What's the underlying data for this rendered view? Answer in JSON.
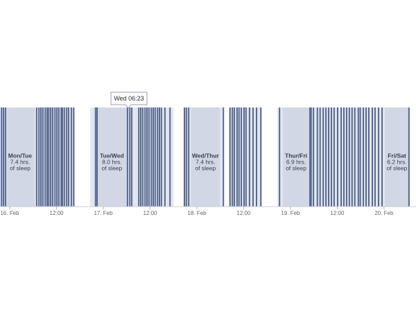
{
  "chart_data": {
    "type": "timeline",
    "xlim": [
      -2.5,
      104.2
    ],
    "xticks": [
      {
        "value": 0,
        "label": "16. Feb"
      },
      {
        "value": 12,
        "label": "12:00"
      },
      {
        "value": 24,
        "label": "17. Feb"
      },
      {
        "value": 36,
        "label": "12:00"
      },
      {
        "value": 48,
        "label": "18. Feb"
      },
      {
        "value": 60,
        "label": "12:00"
      },
      {
        "value": 72,
        "label": "19. Feb"
      },
      {
        "value": 84,
        "label": "12:00"
      },
      {
        "value": 96,
        "label": "20. Feb"
      }
    ],
    "recorded_color": "#e3e6ee",
    "sleep_color": "#d2d7e5",
    "stripe_color": "#56688f",
    "recorded": [
      {
        "start": -2.5,
        "end": 16.7
      },
      {
        "start": 20.6,
        "end": 42.0
      },
      {
        "start": 44.6,
        "end": 54.8
      },
      {
        "start": 56.2,
        "end": 64.7
      },
      {
        "start": 68.6,
        "end": 102.4
      }
    ],
    "sleep": [
      {
        "name": "Mon/Tue",
        "start": -1.1,
        "end": 6.4,
        "hours": 7.4,
        "hours_label": "7.4 hrs.",
        "note": "of sleep"
      },
      {
        "name": "Tue/Wed",
        "start": 22.2,
        "end": 30.2,
        "hours": 8.0,
        "hours_label": "8.0 hrs.",
        "note": "of sleep"
      },
      {
        "name": "Wed/Thur",
        "start": 46.5,
        "end": 53.9,
        "hours": 7.4,
        "hours_label": "7.4 hrs.",
        "note": "of sleep"
      },
      {
        "name": "Thur/Fri",
        "start": 70.0,
        "end": 76.9,
        "hours": 6.9,
        "hours_label": "6.9 hrs.",
        "note": "of sleep"
      },
      {
        "name": "Fri/Sat",
        "start": 96.2,
        "end": 102.4,
        "hours": 6.2,
        "hours_label": "6.2 hrs.",
        "note": "of sleep"
      }
    ],
    "stripes": [
      -2.1,
      -1.6,
      -1.1,
      6.9,
      7.5,
      8.0,
      8.5,
      9.1,
      9.6,
      10.0,
      10.5,
      11.0,
      11.6,
      12.1,
      12.6,
      13.2,
      13.5,
      14.0,
      14.6,
      15.1,
      15.8,
      16.4,
      22.0,
      22.4,
      30.2,
      30.8,
      31.3,
      33.1,
      33.6,
      34.1,
      34.7,
      35.2,
      35.7,
      36.3,
      36.8,
      37.3,
      37.9,
      38.4,
      38.9,
      39.8,
      41.1,
      44.8,
      45.3,
      45.9,
      54.8,
      56.5,
      57.1,
      57.6,
      58.3,
      58.8,
      59.4,
      60.1,
      60.6,
      61.5,
      62.4,
      63.3,
      64.4,
      69.2,
      77.0,
      77.3,
      77.9,
      78.9,
      79.6,
      80.4,
      81.1,
      81.8,
      82.5,
      83.2,
      84.1,
      85.0,
      85.7,
      86.4,
      87.1,
      87.8,
      88.5,
      89.4,
      89.9,
      90.7,
      91.4,
      92.1,
      93.0,
      93.7,
      94.6,
      95.5,
      102.4
    ],
    "tooltip": {
      "x": 30.4,
      "label": "Wed 06:23"
    }
  }
}
